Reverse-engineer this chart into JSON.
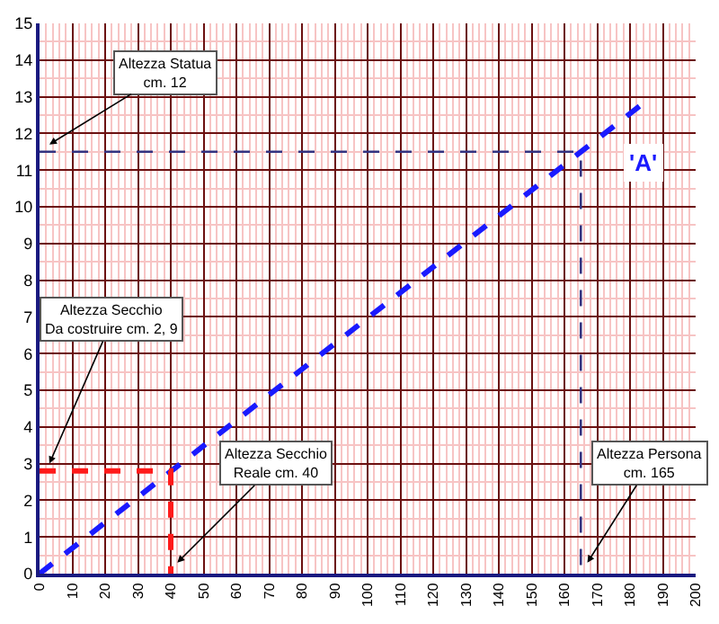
{
  "chart_data": {
    "type": "line",
    "xlim": [
      0,
      200
    ],
    "ylim": [
      0,
      15
    ],
    "xticks": [
      0,
      {
        "value": 2,
        "label": null
      },
      {
        "value": 4,
        "label": null
      },
      {
        "value": 6,
        "label": null
      },
      {
        "value": 8,
        "label": null
      },
      10,
      {
        "value": 12,
        "label": null
      },
      {
        "value": 14,
        "label": null
      },
      {
        "value": 16,
        "label": null
      },
      {
        "value": 18,
        "label": null
      },
      20,
      {
        "value": 22,
        "label": null
      },
      {
        "value": 24,
        "label": null
      },
      {
        "value": 26,
        "label": null
      },
      {
        "value": 28,
        "label": null
      },
      30,
      {
        "value": 32,
        "label": null
      },
      {
        "value": 34,
        "label": null
      },
      {
        "value": 36,
        "label": null
      },
      {
        "value": 38,
        "label": null
      },
      40,
      {
        "value": 42,
        "label": null
      },
      {
        "value": 44,
        "label": null
      },
      {
        "value": 46,
        "label": null
      },
      {
        "value": 48,
        "label": null
      },
      50,
      {
        "value": 52,
        "label": null
      },
      {
        "value": 54,
        "label": null
      },
      {
        "value": 56,
        "label": null
      },
      {
        "value": 58,
        "label": null
      },
      60,
      {
        "value": 62,
        "label": null
      },
      {
        "value": 64,
        "label": null
      },
      {
        "value": 66,
        "label": null
      },
      {
        "value": 68,
        "label": null
      },
      70,
      {
        "value": 72,
        "label": null
      },
      {
        "value": 74,
        "label": null
      },
      {
        "value": 76,
        "label": null
      },
      {
        "value": 78,
        "label": null
      },
      80,
      {
        "value": 82,
        "label": null
      },
      {
        "value": 84,
        "label": null
      },
      {
        "value": 86,
        "label": null
      },
      {
        "value": 88,
        "label": null
      },
      90,
      {
        "value": 92,
        "label": null
      },
      {
        "value": 94,
        "label": null
      },
      {
        "value": 96,
        "label": null
      },
      {
        "value": 98,
        "label": null
      },
      100,
      {
        "value": 102,
        "label": null
      },
      {
        "value": 104,
        "label": null
      },
      {
        "value": 106,
        "label": null
      },
      {
        "value": 108,
        "label": null
      },
      110,
      {
        "value": 112,
        "label": null
      },
      {
        "value": 114,
        "label": null
      },
      {
        "value": 116,
        "label": null
      },
      {
        "value": 118,
        "label": null
      },
      120,
      {
        "value": 122,
        "label": null
      },
      {
        "value": 124,
        "label": null
      },
      {
        "value": 126,
        "label": null
      },
      {
        "value": 128,
        "label": null
      },
      130,
      {
        "value": 132,
        "label": null
      },
      {
        "value": 134,
        "label": null
      },
      {
        "value": 136,
        "label": null
      },
      {
        "value": 138,
        "label": null
      },
      140,
      {
        "value": 142,
        "label": null
      },
      {
        "value": 144,
        "label": null
      },
      {
        "value": 146,
        "label": null
      },
      {
        "value": 148,
        "label": null
      },
      150,
      {
        "value": 152,
        "label": null
      },
      {
        "value": 154,
        "label": null
      },
      {
        "value": 156,
        "label": null
      },
      {
        "value": 158,
        "label": null
      },
      160,
      {
        "value": 162,
        "label": null
      },
      {
        "value": 164,
        "label": null
      },
      {
        "value": 166,
        "label": null
      },
      {
        "value": 168,
        "label": null
      },
      170,
      {
        "value": 172,
        "label": null
      },
      {
        "value": 174,
        "label": null
      },
      {
        "value": 176,
        "label": null
      },
      {
        "value": 178,
        "label": null
      },
      180,
      {
        "value": 182,
        "label": null
      },
      {
        "value": 184,
        "label": null
      },
      {
        "value": 186,
        "label": null
      },
      {
        "value": 188,
        "label": null
      },
      190,
      {
        "value": 192,
        "label": null
      },
      {
        "value": 194,
        "label": null
      },
      {
        "value": 196,
        "label": null
      },
      {
        "value": 198,
        "label": null
      },
      200
    ],
    "yticks": [
      0,
      {
        "value": 0.5,
        "label": null
      },
      1,
      {
        "value": 1.5,
        "label": null
      },
      2,
      {
        "value": 2.5,
        "label": null
      },
      3,
      {
        "value": 3.5,
        "label": null
      },
      4,
      {
        "value": 4.5,
        "label": null
      },
      5,
      {
        "value": 5.5,
        "label": null
      },
      6,
      {
        "value": 6.5,
        "label": null
      },
      7,
      {
        "value": 7.5,
        "label": null
      },
      8,
      {
        "value": 8.5,
        "label": null
      },
      9,
      {
        "value": 9.5,
        "label": null
      },
      10,
      {
        "value": 10.5,
        "label": null
      },
      11,
      {
        "value": 11.5,
        "label": null
      },
      12,
      {
        "value": 12.5,
        "label": null
      },
      13,
      {
        "value": 13.5,
        "label": null
      },
      14,
      {
        "value": 14.5,
        "label": null
      },
      15
    ],
    "grid": true,
    "marker": "none",
    "series": [
      {
        "x": [
          0,
          183
        ],
        "values": [
          0,
          12.75
        ],
        "color": "#1a1aff",
        "line_style": "dashed"
      },
      {
        "x": [
          0,
          40,
          40
        ],
        "values": [
          2.8,
          2.8,
          0
        ],
        "color": "#ff1a1a",
        "line_style": "dashed"
      },
      {
        "x": [
          0,
          165,
          165
        ],
        "values": [
          11.5,
          11.5,
          0
        ],
        "color": "#333380",
        "line_style": "dashed"
      }
    ],
    "annotations": [
      {
        "text": "Altezza Statua\ncm. 12",
        "x": 3,
        "y": 11.7
      },
      {
        "text": "Altezza Secchio\nDa costruire cm. 2, 9",
        "x": 3,
        "y": 3
      },
      {
        "text": "Altezza Secchio\nReale cm. 40",
        "x": 42,
        "y": 0.3
      },
      {
        "text": "Altezza Persona\ncm. 165",
        "x": 167,
        "y": 0.3
      },
      {
        "text": "'A'",
        "x": 184,
        "y": 11.2
      }
    ]
  }
}
